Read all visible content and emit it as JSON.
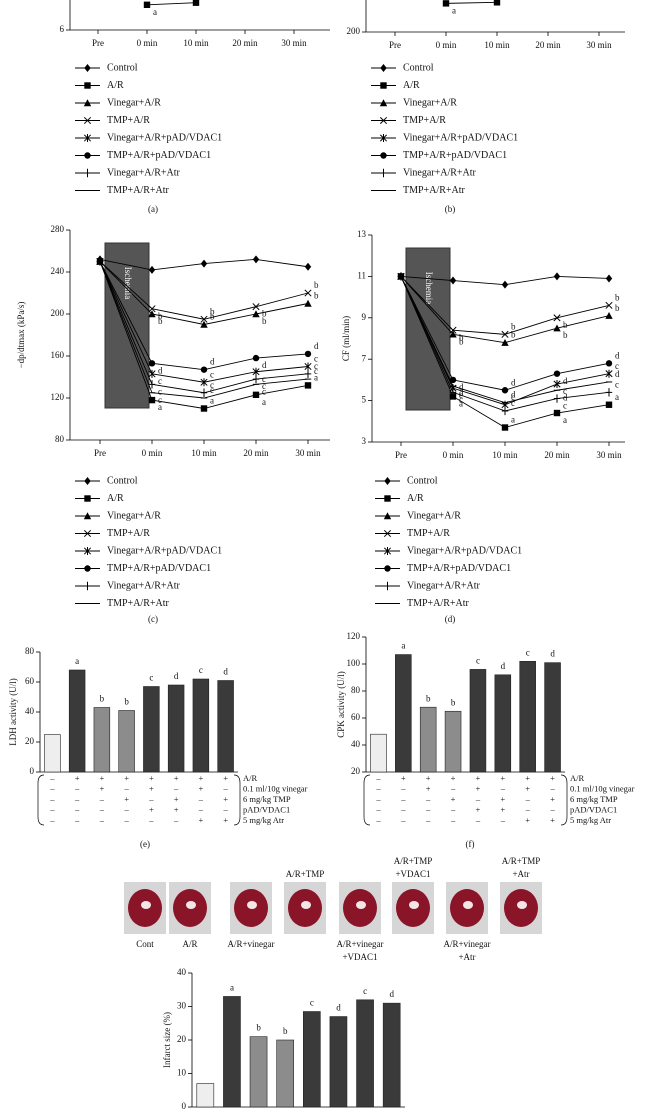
{
  "chart_data": [
    {
      "type": "line",
      "caption": "(a)",
      "categories": [
        "Pre",
        "0 min",
        "10 min",
        "20 min",
        "30 min"
      ],
      "ylim": [
        6,
        16
      ],
      "yticks": [
        6
      ],
      "series": [
        {
          "name": "Control",
          "marker": "diamond",
          "color": "#000000",
          "values": [
            null,
            null,
            null,
            null,
            null
          ]
        },
        {
          "name": "A/R",
          "marker": "square",
          "color": "#000000",
          "values": [
            null,
            7.2,
            7.3,
            null,
            null
          ],
          "letter": "a"
        },
        {
          "name": "Vinegar+A/R",
          "marker": "triangle",
          "color": "#000000",
          "values": [
            null,
            null,
            null,
            null,
            null
          ]
        },
        {
          "name": "TMP+A/R",
          "marker": "x",
          "color": "#000000",
          "values": [
            null,
            null,
            null,
            null,
            null
          ]
        },
        {
          "name": "Vinegar+A/R+pAD/VDAC1",
          "marker": "asterisk",
          "color": "#000000",
          "values": [
            null,
            null,
            null,
            null,
            null
          ]
        },
        {
          "name": "TMP+A/R+pAD/VDAC1",
          "marker": "circle",
          "color": "#000000",
          "values": [
            null,
            null,
            null,
            null,
            null
          ]
        },
        {
          "name": "Vinegar+A/R+Atr",
          "marker": "plus",
          "color": "#000000",
          "values": [
            null,
            null,
            null,
            null,
            null
          ]
        },
        {
          "name": "TMP+A/R+Atr",
          "marker": "dash",
          "color": "#000000",
          "values": [
            null,
            null,
            null,
            null,
            null
          ]
        }
      ]
    },
    {
      "type": "line",
      "caption": "(b)",
      "categories": [
        "Pre",
        "0 min",
        "10 min",
        "20 min",
        "30 min"
      ],
      "ylim": [
        200,
        400
      ],
      "yticks": [
        200
      ],
      "series": [
        {
          "name": "Control",
          "marker": "diamond",
          "color": "#000000",
          "values": [
            null,
            null,
            null,
            null,
            null
          ]
        },
        {
          "name": "A/R",
          "marker": "square",
          "color": "#000000",
          "values": [
            null,
            227,
            228,
            null,
            null
          ],
          "letter": "a"
        },
        {
          "name": "Vinegar+A/R",
          "marker": "triangle",
          "color": "#000000",
          "values": [
            null,
            null,
            null,
            null,
            null
          ]
        },
        {
          "name": "TMP+A/R",
          "marker": "x",
          "color": "#000000",
          "values": [
            null,
            null,
            null,
            null,
            null
          ]
        },
        {
          "name": "Vinegar+A/R+pAD/VDAC1",
          "marker": "asterisk",
          "color": "#000000",
          "values": [
            null,
            null,
            null,
            null,
            null
          ]
        },
        {
          "name": "TMP+A/R+pAD/VDAC1",
          "marker": "circle",
          "color": "#000000",
          "values": [
            null,
            null,
            null,
            null,
            null
          ]
        },
        {
          "name": "Vinegar+A/R+Atr",
          "marker": "plus",
          "color": "#000000",
          "values": [
            null,
            null,
            null,
            null,
            null
          ]
        },
        {
          "name": "TMP+A/R+Atr",
          "marker": "dash",
          "color": "#000000",
          "values": [
            null,
            null,
            null,
            null,
            null
          ]
        }
      ]
    },
    {
      "type": "line",
      "caption": "(c)",
      "y_label": "−dp/dtmax (kPa/s)",
      "annotation": "Ischemia",
      "categories": [
        "Pre",
        "0 min",
        "10 min",
        "20 min",
        "30 min"
      ],
      "ylim": [
        80,
        280
      ],
      "yticks": [
        80,
        120,
        160,
        200,
        240,
        280
      ],
      "series": [
        {
          "name": "Control",
          "marker": "diamond",
          "color": "#000000",
          "values": [
            252,
            242,
            248,
            252,
            245
          ]
        },
        {
          "name": "A/R",
          "marker": "square",
          "color": "#000000",
          "values": [
            250,
            118,
            110,
            123,
            132
          ],
          "letter": "a"
        },
        {
          "name": "Vinegar+A/R",
          "marker": "triangle",
          "color": "#000000",
          "values": [
            250,
            200,
            190,
            200,
            210
          ],
          "letter": "b"
        },
        {
          "name": "TMP+A/R",
          "marker": "x",
          "color": "#000000",
          "values": [
            250,
            205,
            195,
            207,
            220
          ],
          "letter": "b"
        },
        {
          "name": "Vinegar+A/R+pAD/VDAC1",
          "marker": "asterisk",
          "color": "#000000",
          "values": [
            250,
            143,
            135,
            145,
            150
          ],
          "letter": "c"
        },
        {
          "name": "TMP+A/R+pAD/VDAC1",
          "marker": "circle",
          "color": "#000000",
          "values": [
            250,
            153,
            147,
            158,
            162
          ],
          "letter": "d"
        },
        {
          "name": "Vinegar+A/R+Atr",
          "marker": "plus",
          "color": "#000000",
          "values": [
            250,
            133,
            125,
            138,
            143
          ],
          "letter": "c"
        },
        {
          "name": "TMP+A/R+Atr",
          "marker": "dash",
          "color": "#000000",
          "values": [
            250,
            125,
            120,
            133,
            138
          ],
          "letter": "c"
        }
      ]
    },
    {
      "type": "line",
      "caption": "(d)",
      "y_label": "CF (ml/min)",
      "annotation": "Ischemia",
      "categories": [
        "Pre",
        "0 min",
        "10 min",
        "20 min",
        "30 min"
      ],
      "ylim": [
        3,
        13
      ],
      "yticks": [
        3,
        5,
        7,
        9,
        11,
        13
      ],
      "series": [
        {
          "name": "Control",
          "marker": "diamond",
          "color": "#000000",
          "values": [
            11,
            10.8,
            10.6,
            11,
            10.9
          ]
        },
        {
          "name": "A/R",
          "marker": "square",
          "color": "#000000",
          "values": [
            11,
            5.2,
            3.7,
            4.4,
            4.8
          ],
          "letter": "a"
        },
        {
          "name": "Vinegar+A/R",
          "marker": "triangle",
          "color": "#000000",
          "values": [
            11,
            8.2,
            7.8,
            8.5,
            9.1
          ],
          "letter": "b"
        },
        {
          "name": "TMP+A/R",
          "marker": "x",
          "color": "#000000",
          "values": [
            11,
            8.4,
            8.2,
            9,
            9.6
          ],
          "letter": "b"
        },
        {
          "name": "Vinegar+A/R+pAD/VDAC1",
          "marker": "asterisk",
          "color": "#000000",
          "values": [
            11,
            5.6,
            4.8,
            5.8,
            6.3
          ],
          "letter": "c"
        },
        {
          "name": "TMP+A/R+pAD/VDAC1",
          "marker": "circle",
          "color": "#000000",
          "values": [
            11,
            6.0,
            5.5,
            6.3,
            6.8
          ],
          "letter": "d"
        },
        {
          "name": "Vinegar+A/R+Atr",
          "marker": "plus",
          "color": "#000000",
          "values": [
            11,
            5.4,
            4.5,
            5.1,
            5.4
          ],
          "letter": "c"
        },
        {
          "name": "TMP+A/R+Atr",
          "marker": "dash",
          "color": "#000000",
          "values": [
            11,
            5.7,
            4.9,
            5.5,
            5.9
          ],
          "letter": "d"
        }
      ]
    },
    {
      "type": "bar",
      "caption": "(e)",
      "y_label": "LDH activity (U/l)",
      "ylim": [
        0,
        80
      ],
      "yticks": [
        0,
        20,
        40,
        60,
        80
      ],
      "values": [
        25,
        68,
        43,
        41,
        57,
        58,
        62,
        61
      ],
      "letters": [
        null,
        "a",
        "b",
        "b",
        "c",
        "d",
        "c",
        "d"
      ],
      "colors": [
        "#eeeeee",
        "#3a3a3a",
        "#8c8c8c",
        "#8c8c8c",
        "#3a3a3a",
        "#3a3a3a",
        "#3a3a3a",
        "#3a3a3a"
      ],
      "conditions": [
        {
          "label": "A/R",
          "signs": [
            "–",
            "+",
            "+",
            "+",
            "+",
            "+",
            "+",
            "+"
          ]
        },
        {
          "label": "0.1 ml/10g vinegar",
          "signs": [
            "–",
            "–",
            "+",
            "–",
            "+",
            "–",
            "+",
            "–"
          ]
        },
        {
          "label": "6 mg/kg TMP",
          "signs": [
            "–",
            "–",
            "–",
            "+",
            "–",
            "+",
            "–",
            "+"
          ]
        },
        {
          "label": "pAD/VDAC1",
          "signs": [
            "–",
            "–",
            "–",
            "–",
            "+",
            "+",
            "–",
            "–"
          ]
        },
        {
          "label": "5 mg/kg Atr",
          "signs": [
            "–",
            "–",
            "–",
            "–",
            "–",
            "–",
            "+",
            "+"
          ]
        }
      ]
    },
    {
      "type": "bar",
      "caption": "(f)",
      "y_label": "CPK activity (U/l)",
      "ylim": [
        20,
        120
      ],
      "yticks": [
        20,
        40,
        60,
        80,
        100,
        120
      ],
      "values": [
        48,
        107,
        68,
        65,
        96,
        92,
        102,
        101
      ],
      "letters": [
        null,
        "a",
        "b",
        "b",
        "c",
        "d",
        "c",
        "d"
      ],
      "colors": [
        "#eeeeee",
        "#3a3a3a",
        "#8c8c8c",
        "#8c8c8c",
        "#3a3a3a",
        "#3a3a3a",
        "#3a3a3a",
        "#3a3a3a"
      ],
      "conditions": [
        {
          "label": "A/R",
          "signs": [
            "–",
            "+",
            "+",
            "+",
            "+",
            "+",
            "+",
            "+"
          ]
        },
        {
          "label": "0.1 ml/10g vinegar",
          "signs": [
            "–",
            "–",
            "+",
            "–",
            "+",
            "–",
            "+",
            "–"
          ]
        },
        {
          "label": "6 mg/kg TMP",
          "signs": [
            "–",
            "–",
            "–",
            "+",
            "–",
            "+",
            "–",
            "+"
          ]
        },
        {
          "label": "pAD/VDAC1",
          "signs": [
            "–",
            "–",
            "–",
            "–",
            "+",
            "+",
            "–",
            "–"
          ]
        },
        {
          "label": "5 mg/kg Atr",
          "signs": [
            "–",
            "–",
            "–",
            "–",
            "–",
            "–",
            "+",
            "+"
          ]
        }
      ]
    },
    {
      "type": "bar",
      "y_label": "Infarct size (%)",
      "ylim": [
        0,
        40
      ],
      "yticks": [
        0,
        10,
        20,
        30,
        40
      ],
      "values": [
        7,
        33,
        21,
        20,
        28.5,
        27,
        32,
        31
      ],
      "letters": [
        null,
        "a",
        "b",
        "b",
        "c",
        "d",
        "c",
        "d"
      ],
      "colors": [
        "#eeeeee",
        "#3a3a3a",
        "#8c8c8c",
        "#8c8c8c",
        "#3a3a3a",
        "#3a3a3a",
        "#3a3a3a",
        "#3a3a3a"
      ]
    }
  ],
  "heart_images": {
    "labels": [
      [
        "Cont"
      ],
      [
        "A/R"
      ],
      [
        "A/R+vinegar"
      ],
      [
        "A/R+TMP"
      ],
      [
        "A/R+vinegar",
        "+VDAC1"
      ],
      [
        "A/R+TMP",
        "+VDAC1"
      ],
      [
        "A/R+vinegar",
        "+Atr"
      ],
      [
        "A/R+TMP",
        "+Atr"
      ]
    ]
  }
}
